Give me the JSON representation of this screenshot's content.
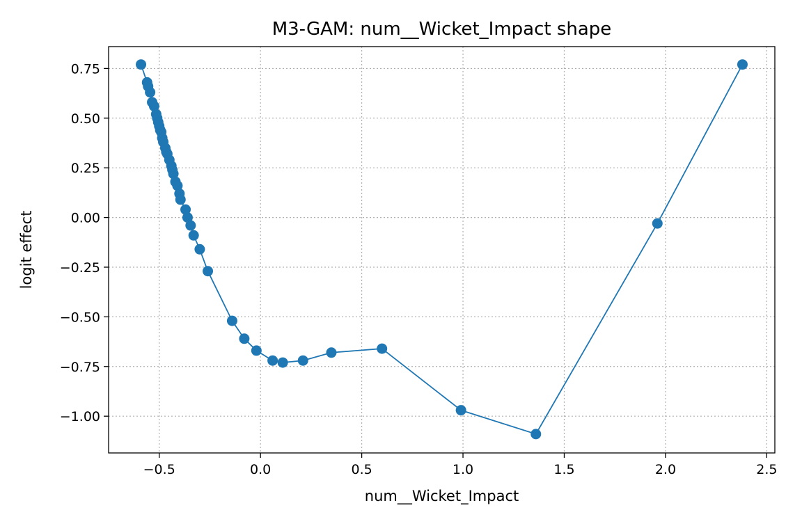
{
  "chart_data": {
    "type": "line",
    "title": "M3-GAM: num__Wicket_Impact shape",
    "xlabel": "num__Wicket_Impact",
    "ylabel": "logit effect",
    "xlim": [
      -0.75,
      2.54
    ],
    "ylim": [
      -1.185,
      0.86
    ],
    "grid": true,
    "x_ticks": [
      -0.5,
      0.0,
      0.5,
      1.0,
      1.5,
      2.0,
      2.5
    ],
    "x_tick_labels": [
      "−0.5",
      "0.0",
      "0.5",
      "1.0",
      "1.5",
      "2.0",
      "2.5"
    ],
    "y_ticks": [
      0.75,
      0.5,
      0.25,
      0.0,
      -0.25,
      -0.5,
      -0.75,
      -1.0
    ],
    "y_tick_labels": [
      "0.75",
      "0.50",
      "0.25",
      "0.00",
      "−0.25",
      "−0.50",
      "−0.75",
      "−1.00"
    ],
    "color": "#1f77b4",
    "series": [
      {
        "x": [
          -0.59,
          -0.56,
          -0.555,
          -0.545,
          -0.535,
          -0.525,
          -0.515,
          -0.51,
          -0.505,
          -0.5,
          -0.495,
          -0.49,
          -0.485,
          -0.48,
          -0.47,
          -0.465,
          -0.46,
          -0.45,
          -0.44,
          -0.435,
          -0.43,
          -0.42,
          -0.41,
          -0.4,
          -0.395,
          -0.37,
          -0.36,
          -0.345,
          -0.33,
          -0.3,
          -0.26,
          -0.14,
          -0.08,
          -0.02,
          0.06,
          0.11,
          0.21,
          0.35,
          0.6,
          0.99,
          1.36,
          1.96,
          2.38
        ],
        "y": [
          0.77,
          0.68,
          0.66,
          0.63,
          0.58,
          0.56,
          0.52,
          0.5,
          0.48,
          0.46,
          0.44,
          0.43,
          0.4,
          0.38,
          0.35,
          0.33,
          0.32,
          0.29,
          0.26,
          0.24,
          0.22,
          0.18,
          0.16,
          0.12,
          0.09,
          0.04,
          0.0,
          -0.04,
          -0.09,
          -0.16,
          -0.27,
          -0.52,
          -0.61,
          -0.67,
          -0.72,
          -0.73,
          -0.72,
          -0.68,
          -0.66,
          -0.97,
          -1.09,
          -0.03,
          0.77
        ]
      }
    ]
  }
}
